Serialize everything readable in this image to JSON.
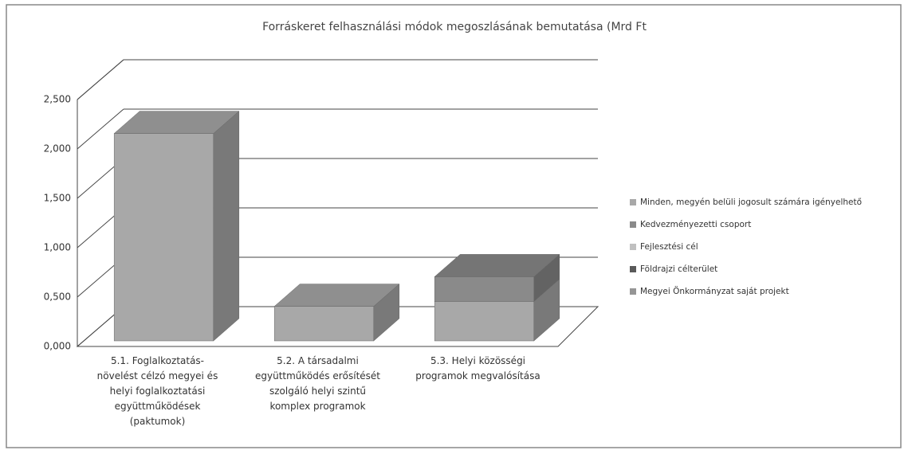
{
  "chart_data": {
    "type": "bar3d_stacked",
    "title": "Forráskeret felhasználási módok megoszlásának bemutatása (Mrd Ft",
    "categories": [
      "5.1. Foglalkoztatás-\nnövelést célzó megyei és\nhelyi foglalkoztatási\negyüttműködések\n(paktumok)",
      "5.2. A társadalmi\negyüttműködés erősítését\nszolgáló helyi szintű\nkomplex programok",
      "5.3. Helyi közösségi\nprogramok megvalósítása"
    ],
    "series": [
      {
        "name": "Minden, megyén belüli jogosult számára igényelhető",
        "color": "#a8a8a8",
        "values": [
          2.1,
          0.35,
          0.4
        ]
      },
      {
        "name": "Kedvezményezetti csoport",
        "color": "#8a8a8a",
        "values": [
          null,
          null,
          0.25
        ]
      },
      {
        "name": "Fejlesztési cél",
        "color": "#c0c0c0",
        "values": [
          null,
          null,
          null
        ]
      },
      {
        "name": "Földrajzi célterület",
        "color": "#5a5a5a",
        "values": [
          null,
          null,
          null
        ]
      },
      {
        "name": "Megyei Önkormányzat saját projekt",
        "color": "#959595",
        "values": [
          null,
          null,
          null
        ]
      }
    ],
    "ylim": [
      0,
      2.5
    ],
    "yticks": [
      {
        "value": 0,
        "label": "0,000"
      },
      {
        "value": 0.5,
        "label": "0,500"
      },
      {
        "value": 1,
        "label": "1,000"
      },
      {
        "value": 1.5,
        "label": "1,500"
      },
      {
        "value": 2,
        "label": "2,000"
      },
      {
        "value": 2.5,
        "label": "2,500"
      }
    ],
    "grid": true,
    "legend": "right"
  }
}
